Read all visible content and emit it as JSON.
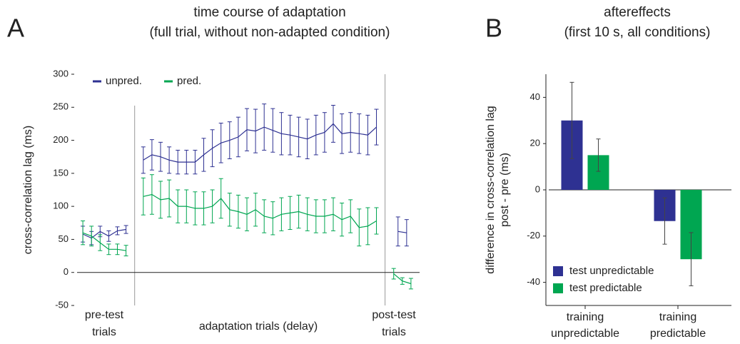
{
  "chart_data": [
    {
      "type": "line",
      "panel_label": "A",
      "title": "time course of adaptation",
      "subtitle": "(full trial, without non-adapted condition)",
      "ylabel": "cross-correlation lag (ms)",
      "x_group_labels": [
        [
          "pre-test",
          "trials"
        ],
        [
          "adaptation trials (delay)"
        ],
        [
          "post-test",
          "trials"
        ]
      ],
      "xlim": [
        0,
        40
      ],
      "ylim": [
        -50,
        300
      ],
      "yticks": [
        -50,
        0,
        50,
        100,
        150,
        200,
        250,
        300
      ],
      "legend": "top-left",
      "series": [
        {
          "name": "unpred.",
          "color": "#2e3192",
          "x": [
            1,
            2,
            3,
            4,
            5,
            6,
            7,
            8,
            9,
            10,
            11,
            12,
            13,
            14,
            15,
            16,
            17,
            18,
            19,
            20,
            21,
            22,
            23,
            24,
            25,
            26,
            27,
            28,
            29,
            30,
            31,
            32,
            33,
            34,
            35,
            36,
            37.5,
            38.5
          ],
          "values": [
            58,
            52,
            62,
            55,
            63,
            65,
            null,
            170,
            178,
            175,
            170,
            167,
            167,
            167,
            178,
            188,
            196,
            200,
            205,
            216,
            214,
            220,
            215,
            210,
            208,
            205,
            202,
            208,
            212,
            225,
            210,
            212,
            210,
            208,
            220,
            null,
            62,
            60
          ],
          "errors": [
            12,
            10,
            8,
            8,
            6,
            6,
            null,
            20,
            23,
            22,
            20,
            18,
            18,
            18,
            25,
            28,
            30,
            28,
            30,
            32,
            33,
            35,
            33,
            32,
            30,
            30,
            30,
            30,
            30,
            28,
            30,
            30,
            30,
            30,
            27,
            null,
            22,
            20
          ]
        },
        {
          "name": "pred.",
          "color": "#00a651",
          "x": [
            1,
            2,
            3,
            4,
            5,
            6,
            7,
            8,
            9,
            10,
            11,
            12,
            13,
            14,
            15,
            16,
            17,
            18,
            19,
            20,
            21,
            22,
            23,
            24,
            25,
            26,
            27,
            28,
            29,
            30,
            31,
            32,
            33,
            34,
            35,
            36,
            37,
            38,
            39
          ],
          "values": [
            60,
            55,
            45,
            35,
            35,
            33,
            null,
            115,
            118,
            110,
            112,
            100,
            100,
            97,
            97,
            100,
            112,
            95,
            92,
            88,
            95,
            85,
            82,
            88,
            90,
            92,
            88,
            85,
            85,
            88,
            80,
            85,
            68,
            70,
            78,
            null,
            -2,
            -13,
            -17
          ],
          "errors": [
            18,
            15,
            12,
            8,
            8,
            8,
            null,
            28,
            30,
            28,
            28,
            25,
            25,
            25,
            25,
            25,
            30,
            25,
            25,
            25,
            25,
            25,
            25,
            25,
            25,
            25,
            25,
            25,
            25,
            25,
            25,
            25,
            28,
            28,
            20,
            null,
            8,
            5,
            8
          ]
        }
      ]
    },
    {
      "type": "bar",
      "panel_label": "B",
      "title": "aftereffects",
      "subtitle": "(first 10 s, all conditions)",
      "ylabel": [
        "difference in cross-correlation lag",
        "post - pre (ms)"
      ],
      "categories": [
        [
          "training",
          "unpredictable"
        ],
        [
          "training",
          "predictable"
        ]
      ],
      "ylim": [
        -50,
        50
      ],
      "yticks": [
        -40,
        -20,
        0,
        20,
        40
      ],
      "legend": "bottom-left",
      "series": [
        {
          "name": "test unpredictable",
          "color": "#2e3192",
          "values": [
            30,
            -13.5
          ],
          "errors": [
            16.5,
            10
          ]
        },
        {
          "name": "test predictable",
          "color": "#00a651",
          "values": [
            15,
            -30
          ],
          "errors": [
            7,
            11.5
          ]
        }
      ]
    }
  ]
}
